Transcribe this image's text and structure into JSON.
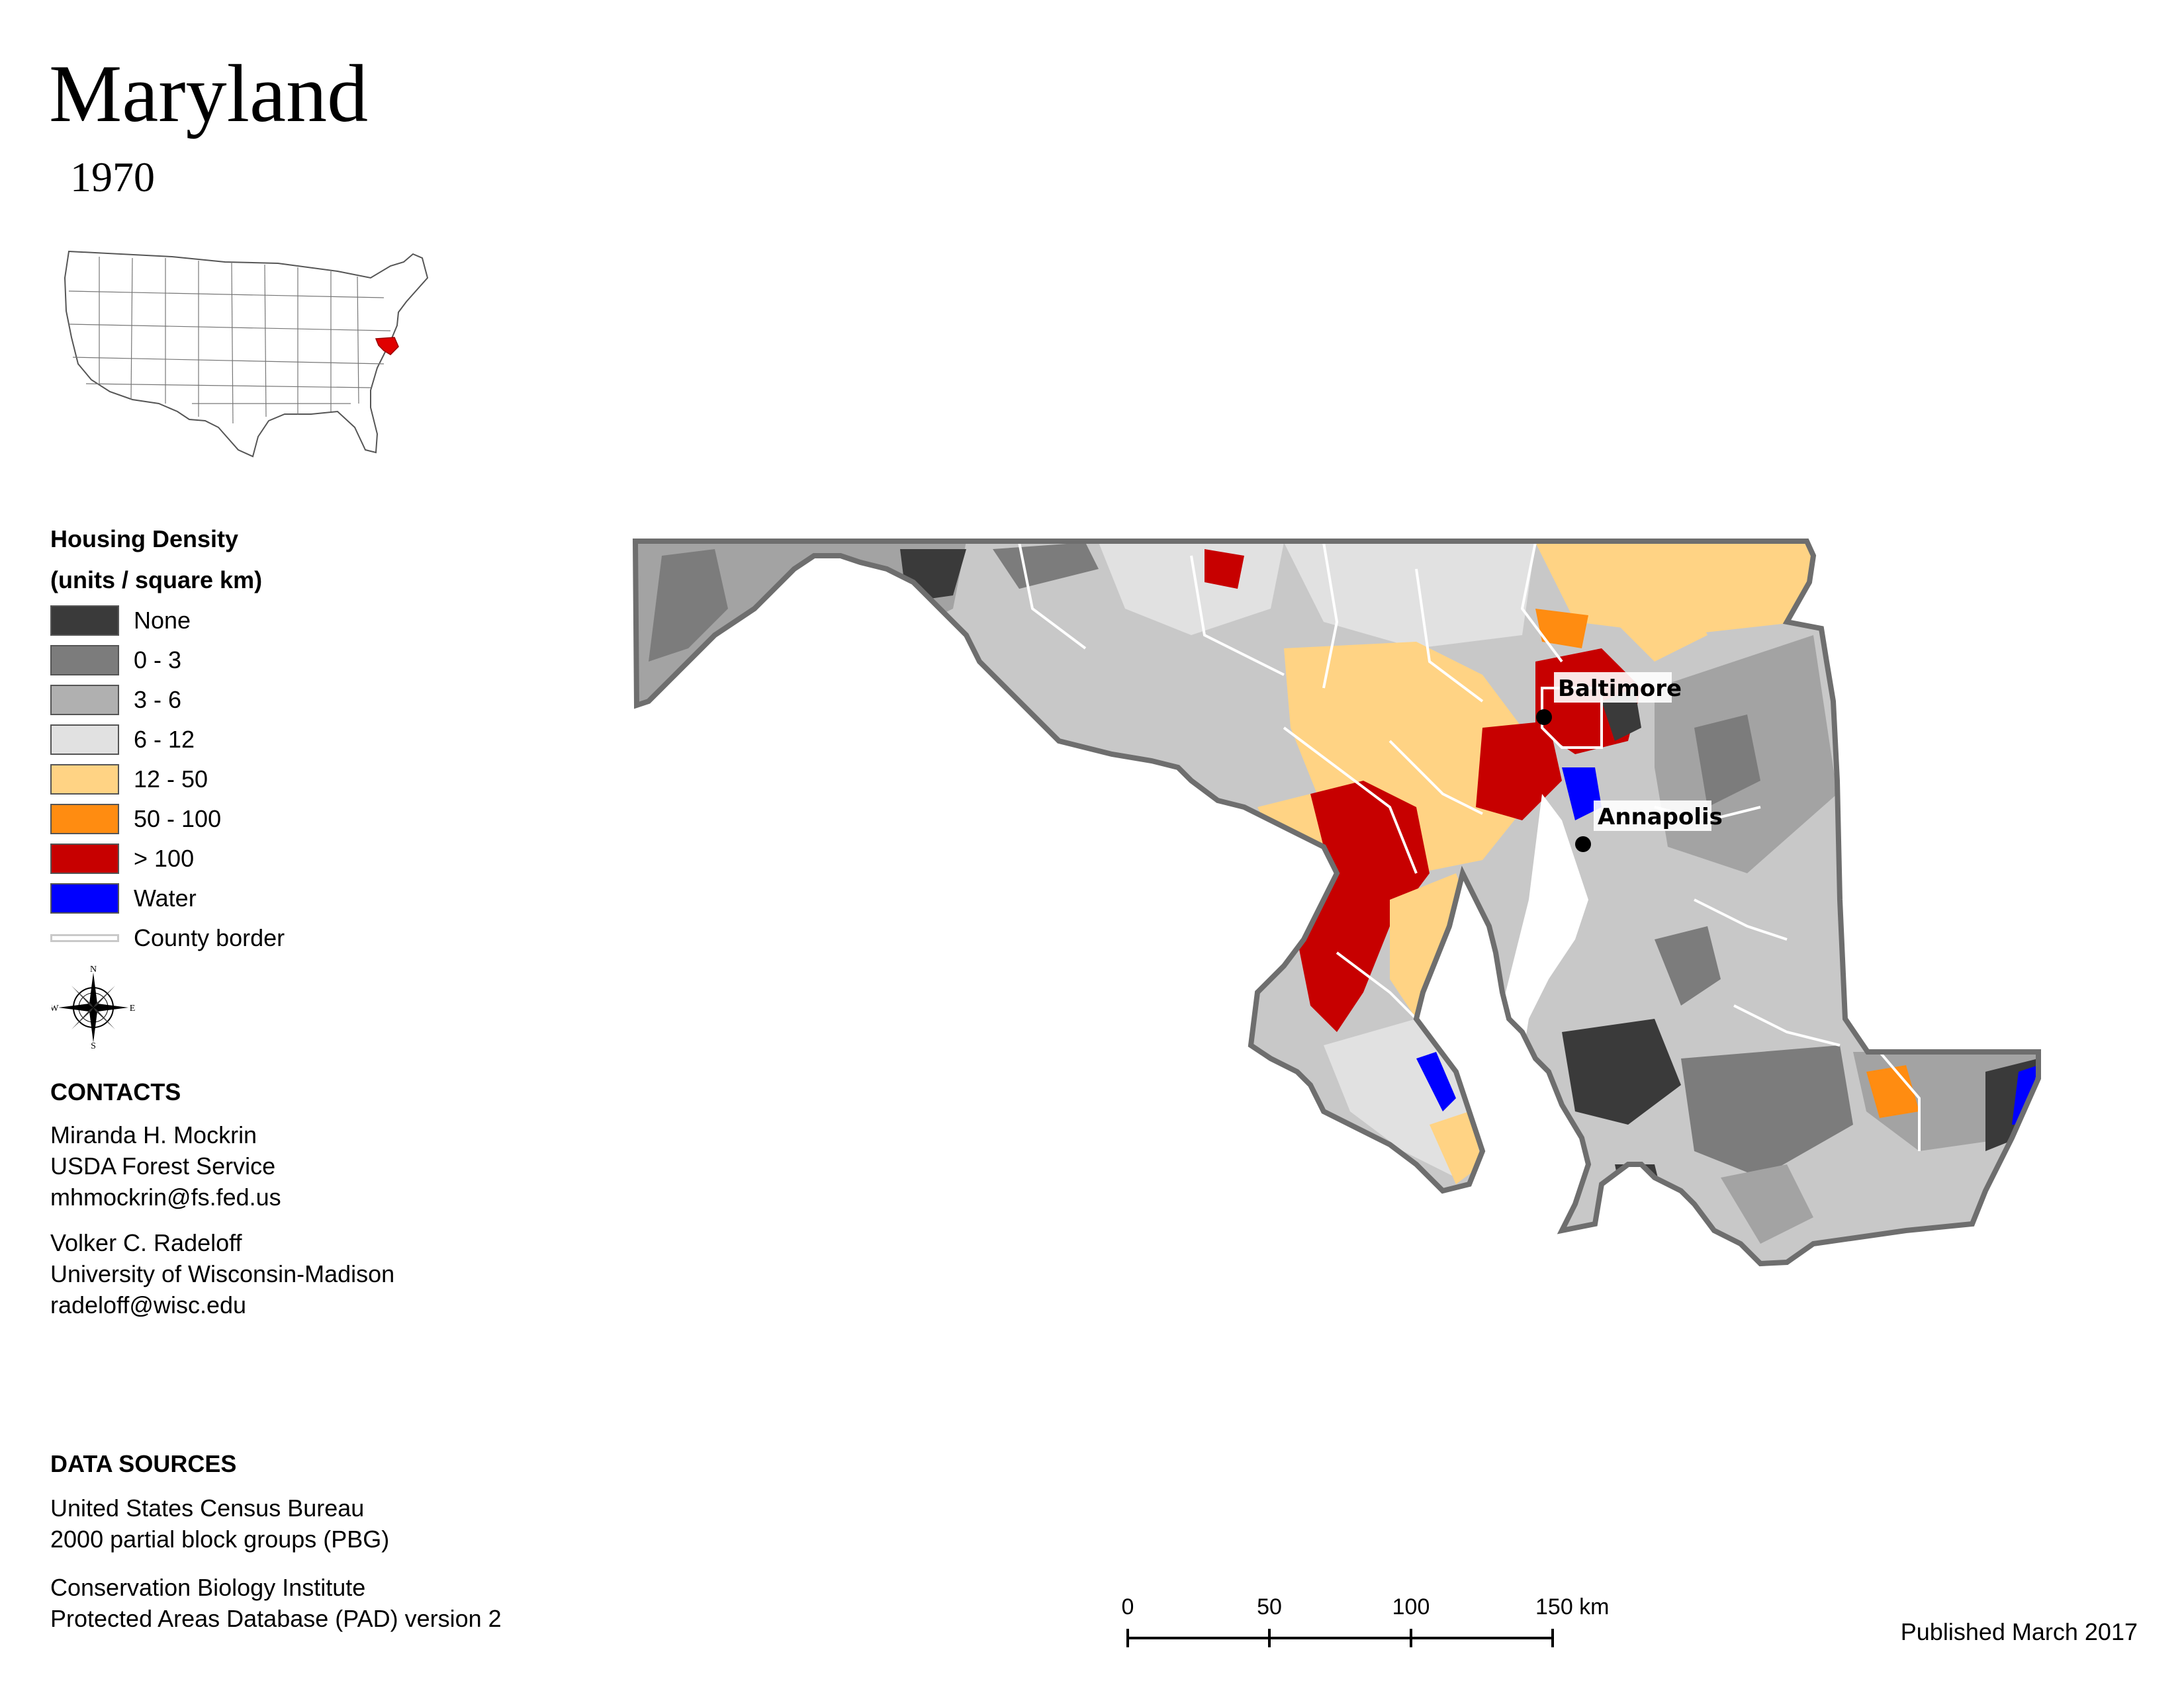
{
  "title": "Maryland",
  "year": "1970",
  "legend": {
    "title_line1": "Housing Density",
    "title_line2": "(units / square km)",
    "items": [
      {
        "label": "None",
        "color": "#3a3a3a"
      },
      {
        "label": "0 - 3",
        "color": "#7c7c7c"
      },
      {
        "label": "3 - 6",
        "color": "#b0b0b0"
      },
      {
        "label": "6 - 12",
        "color": "#e1e1e1"
      },
      {
        "label": "12 - 50",
        "color": "#ffd384"
      },
      {
        "label": "50 - 100",
        "color": "#ff8c11"
      },
      {
        "label": "> 100",
        "color": "#c70000"
      },
      {
        "label": "Water",
        "color": "#0000ff"
      }
    ],
    "border_label": "County border"
  },
  "compass": {
    "n": "N",
    "s": "S",
    "e": "E",
    "w": "W"
  },
  "contacts": {
    "heading": "CONTACTS",
    "person1": {
      "name": "Miranda H. Mockrin",
      "org": "USDA Forest Service",
      "email": "mhmockrin@fs.fed.us"
    },
    "person2": {
      "name": "Volker C. Radeloff",
      "org": "University of Wisconsin-Madison",
      "email": "radeloff@wisc.edu"
    }
  },
  "data_sources": {
    "heading": "DATA SOURCES",
    "line1": "United States Census Bureau",
    "line2": "2000 partial block groups (PBG)",
    "line3": "Conservation Biology Institute",
    "line4": "Protected Areas Database (PAD) version 2"
  },
  "scale": {
    "ticks": [
      "0",
      "50",
      "100",
      "150 km"
    ]
  },
  "published": "Published March 2017",
  "cities": [
    {
      "name": "Baltimore"
    },
    {
      "name": "Annapolis"
    }
  ]
}
